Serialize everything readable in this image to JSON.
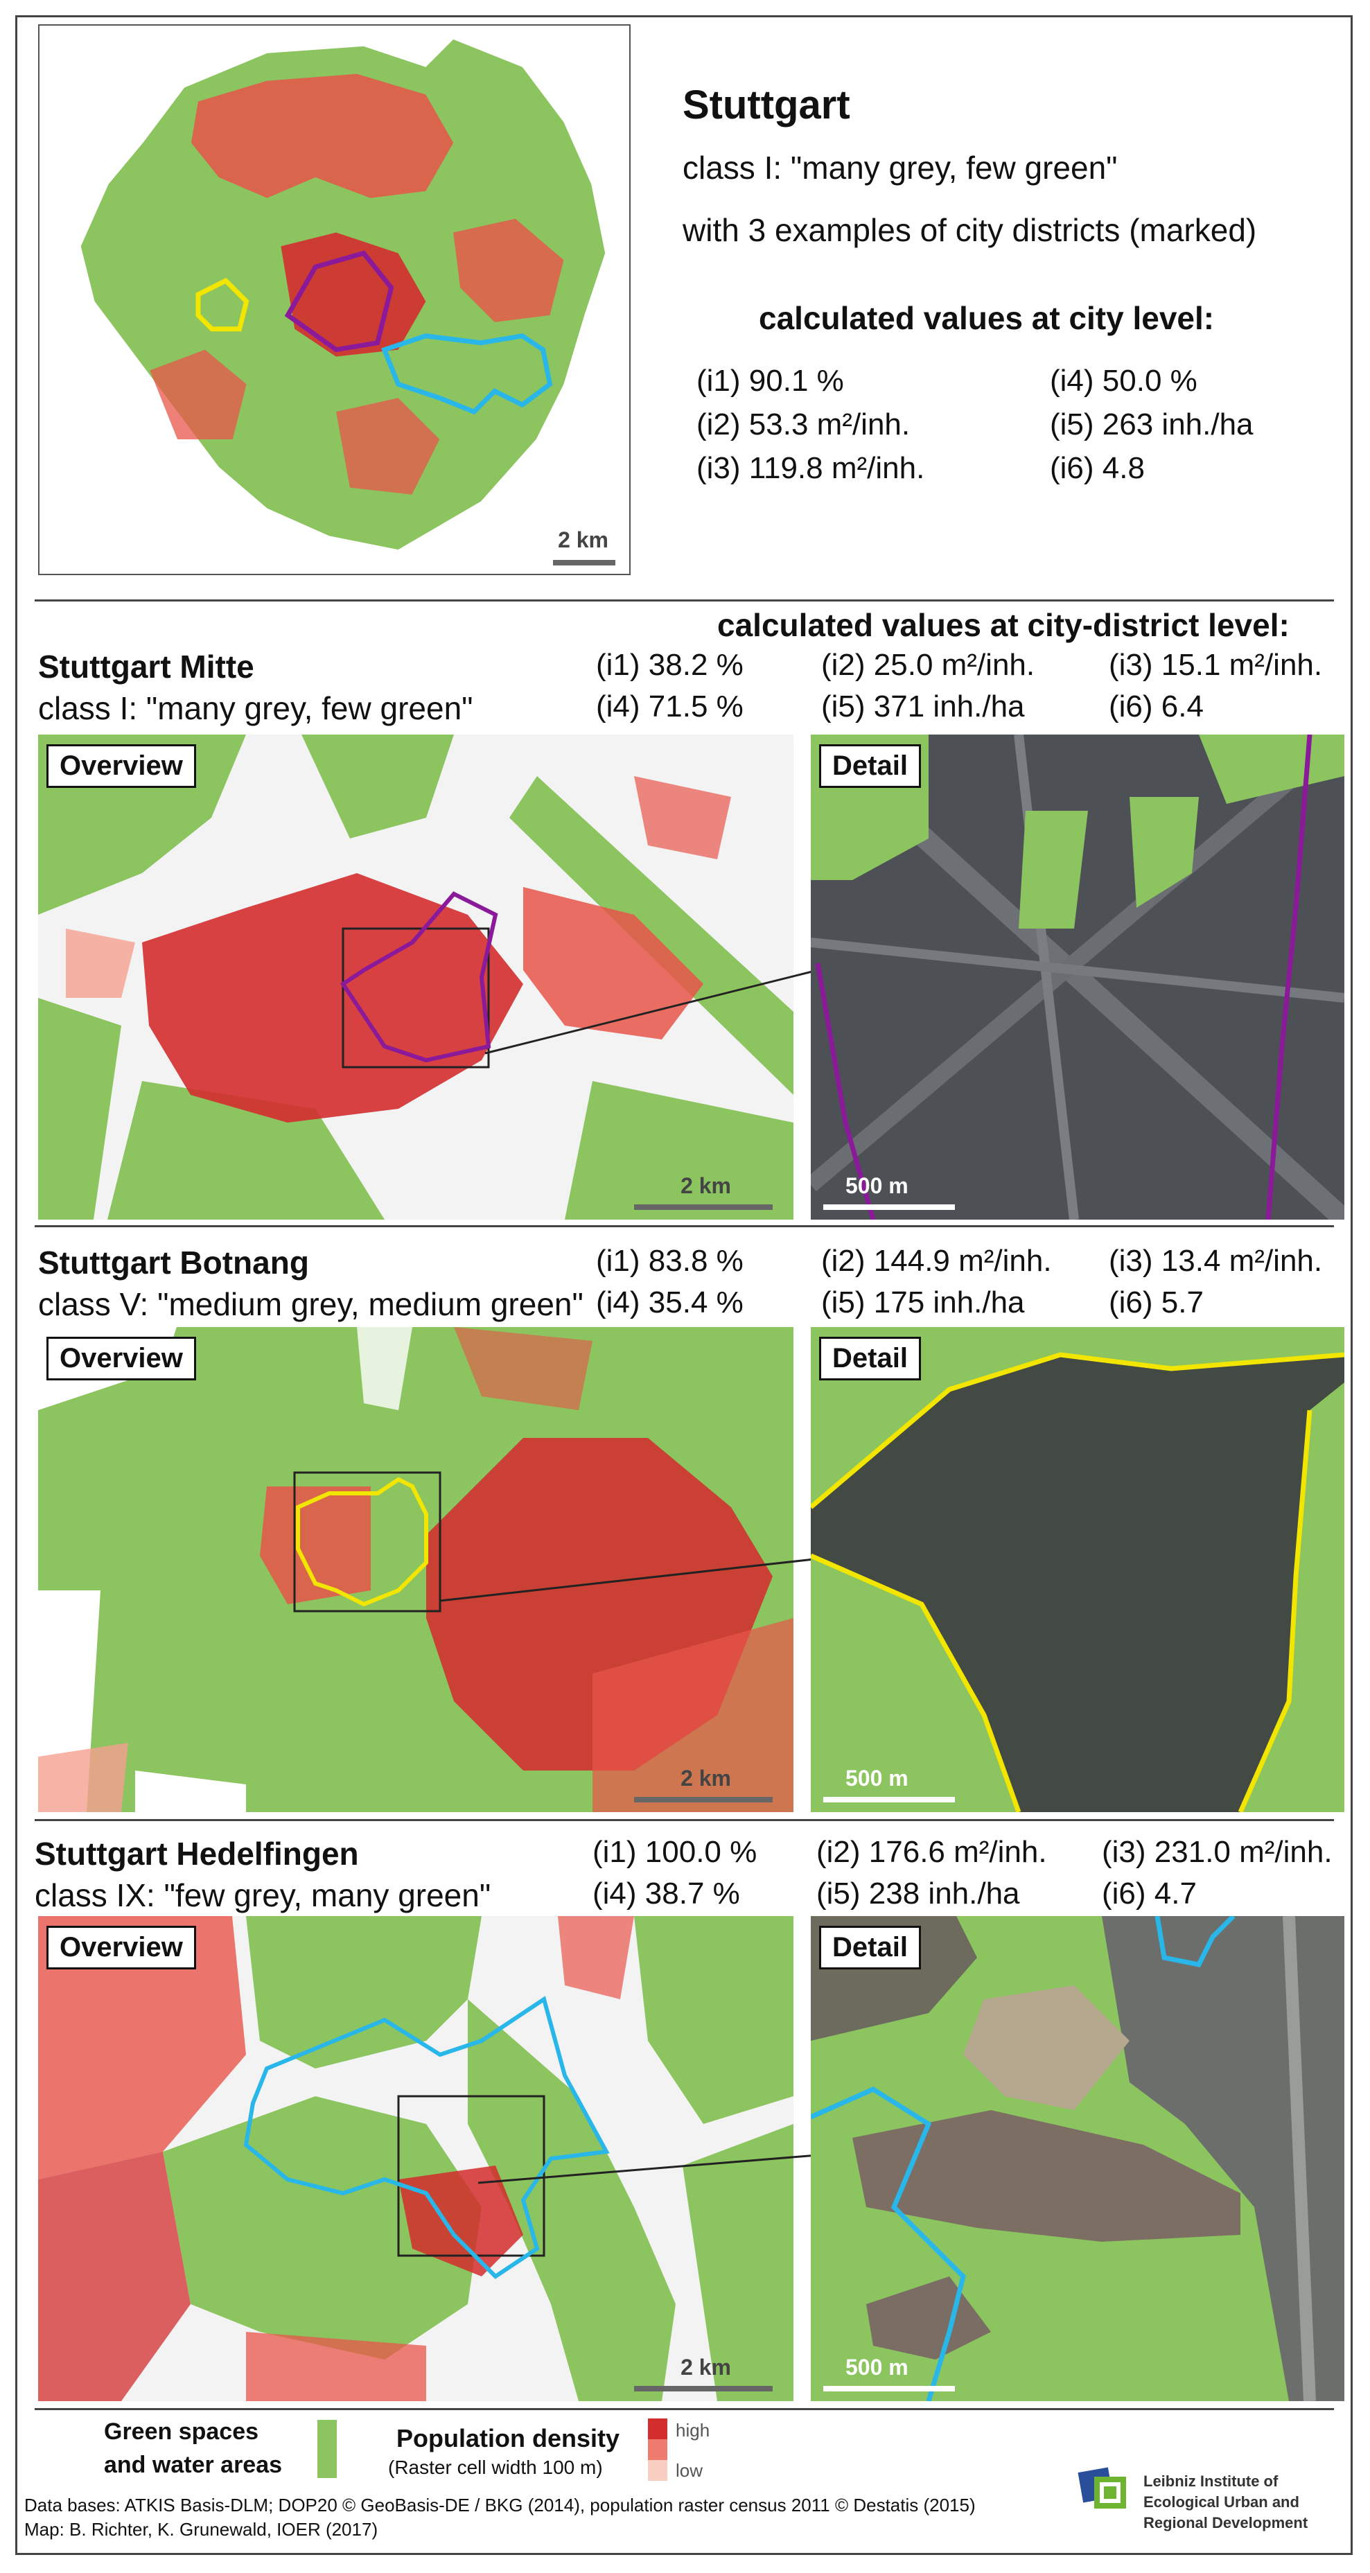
{
  "header": {
    "title": "Stuttgart",
    "class_line": "class I: \"many grey, few green\"",
    "examples_line": "with 3 examples of city districts (marked)",
    "calc_title": "calculated values at city level:",
    "city_values": [
      "(i1) 90.1 %",
      "(i4) 50.0 %",
      "(i2) 53.3 m²/inh.",
      "(i5) 263 inh./ha",
      "(i3) 119.8 m²/inh.",
      "(i6) 4.8"
    ],
    "map_scale": "2 km"
  },
  "district_section_title": "calculated values at city-district level:",
  "districts": [
    {
      "name": "Stuttgart Mitte",
      "class_label": "class I: \"many grey, few green\"",
      "values": [
        "(i1) 38.2 %",
        "(i2) 25.0 m²/inh.",
        "(i3) 15.1 m²/inh.",
        "(i4) 71.5 %",
        "(i5) 371 inh./ha",
        "(i6) 6.4"
      ],
      "overview_label": "Overview",
      "detail_label": "Detail",
      "overview_scale": "2 km",
      "detail_scale": "500 m",
      "outline_color": "#8b1a9b"
    },
    {
      "name": "Stuttgart Botnang",
      "class_label": "class V: \"medium grey, medium green\"",
      "values": [
        "(i1) 83.8 %",
        "(i2) 144.9 m²/inh.",
        "(i3) 13.4 m²/inh.",
        "(i4) 35.4 %",
        "(i5) 175 inh./ha",
        "(i6) 5.7"
      ],
      "overview_label": "Overview",
      "detail_label": "Detail",
      "overview_scale": "2 km",
      "detail_scale": "500 m",
      "outline_color": "#f2e600"
    },
    {
      "name": "Stuttgart Hedelfingen",
      "class_label": "class IX: \"few grey, many green\"",
      "values": [
        "(i1) 100.0 %",
        "(i2) 176.6 m²/inh.",
        "(i3) 231.0 m²/inh.",
        "(i4) 38.7 %",
        "(i5) 238 inh./ha",
        "(i6) 4.7"
      ],
      "overview_label": "Overview",
      "detail_label": "Detail",
      "overview_scale": "2 km",
      "detail_scale": "500 m",
      "outline_color": "#29b6e8"
    }
  ],
  "legend": {
    "green_line1": "Green spaces",
    "green_line2": "and water areas",
    "pop_title": "Population density",
    "pop_sub": "(Raster cell width 100 m)",
    "high": "high",
    "low": "low"
  },
  "footer": {
    "data_bases": "Data bases: ATKIS Basis-DLM; DOP20 © GeoBasis-DE / BKG (2014),  population raster census 2011 © Destatis (2015)",
    "map_credit": "Map: B. Richter, K. Grunewald, IOER (2017)",
    "institute_line1": "Leibniz Institute of",
    "institute_line2": "Ecological Urban and",
    "institute_line3": "Regional Development"
  },
  "colors": {
    "green": "#8cc460",
    "pop_high": "#d42d2d",
    "pop_mid": "#ee7b6d",
    "pop_low": "#f9cfc4",
    "frame": "#444444"
  }
}
